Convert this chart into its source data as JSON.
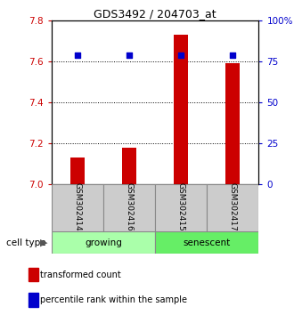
{
  "title": "GDS3492 / 204703_at",
  "samples": [
    "GSM302414",
    "GSM302416",
    "GSM302415",
    "GSM302417"
  ],
  "bar_values": [
    7.13,
    7.18,
    7.73,
    7.59
  ],
  "dot_values": [
    79,
    79,
    79,
    79
  ],
  "bar_color": "#CC0000",
  "dot_color": "#0000CC",
  "ylim_left": [
    7.0,
    7.8
  ],
  "ylim_right": [
    0,
    100
  ],
  "yticks_left": [
    7.0,
    7.2,
    7.4,
    7.6,
    7.8
  ],
  "yticks_right": [
    0,
    25,
    50,
    75,
    100
  ],
  "ytick_labels_right": [
    "0",
    "25",
    "50",
    "75",
    "100%"
  ],
  "grid_values": [
    7.2,
    7.4,
    7.6
  ],
  "left_tick_color": "#CC0000",
  "right_tick_color": "#0000CC",
  "growing_color": "#aaffaa",
  "senescent_color": "#66ee66",
  "sample_box_color": "#cccccc",
  "legend_bar_label": "transformed count",
  "legend_dot_label": "percentile rank within the sample",
  "cell_type_label": "cell type"
}
